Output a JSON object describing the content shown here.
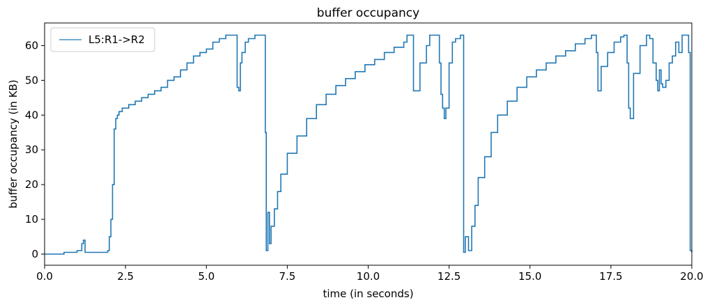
{
  "chart_data": {
    "type": "line",
    "title": "buffer occupancy",
    "xlabel": "time (in seconds)",
    "ylabel": "buffer occupancy (in KB)",
    "xlim": [
      0,
      20
    ],
    "ylim": [
      -3.2,
      66.5
    ],
    "xticks": [
      "0.0",
      "2.5",
      "5.0",
      "7.5",
      "10.0",
      "12.5",
      "15.0",
      "17.5",
      "20.0"
    ],
    "yticks": [
      "0",
      "10",
      "20",
      "30",
      "40",
      "50",
      "60"
    ],
    "grid": false,
    "legend_position": "top-left",
    "series": [
      {
        "name": "L5:R1->R2",
        "color": "#1f77b4",
        "x": [
          0,
          0.5,
          0.6,
          0.8,
          1.0,
          1.15,
          1.2,
          1.25,
          1.3,
          1.5,
          1.8,
          1.95,
          2.0,
          2.05,
          2.1,
          2.15,
          2.2,
          2.25,
          2.3,
          2.4,
          2.6,
          2.8,
          3.0,
          3.2,
          3.4,
          3.6,
          3.8,
          4.0,
          4.2,
          4.4,
          4.6,
          4.8,
          5.0,
          5.2,
          5.4,
          5.6,
          5.8,
          5.9,
          5.95,
          6.0,
          6.05,
          6.1,
          6.2,
          6.3,
          6.5,
          6.7,
          6.8,
          6.82,
          6.85,
          6.9,
          6.95,
          7.0,
          7.1,
          7.2,
          7.3,
          7.5,
          7.8,
          8.1,
          8.4,
          8.7,
          9.0,
          9.3,
          9.6,
          9.9,
          10.2,
          10.5,
          10.8,
          11.1,
          11.2,
          11.3,
          11.4,
          11.6,
          11.8,
          11.9,
          12.0,
          12.1,
          12.2,
          12.25,
          12.3,
          12.35,
          12.4,
          12.5,
          12.6,
          12.7,
          12.85,
          12.9,
          12.95,
          13.0,
          13.1,
          13.2,
          13.3,
          13.4,
          13.6,
          13.8,
          14.0,
          14.3,
          14.6,
          14.9,
          15.2,
          15.5,
          15.8,
          16.1,
          16.4,
          16.7,
          16.9,
          17.0,
          17.05,
          17.1,
          17.2,
          17.4,
          17.6,
          17.8,
          17.9,
          18.0,
          18.05,
          18.1,
          18.2,
          18.4,
          18.6,
          18.7,
          18.8,
          18.9,
          18.95,
          19.0,
          19.05,
          19.1,
          19.2,
          19.3,
          19.4,
          19.5,
          19.6,
          19.7,
          19.8,
          19.9,
          19.95,
          20.0
        ],
        "y": [
          0,
          0,
          0.5,
          0.5,
          1,
          3,
          4,
          0.5,
          0.5,
          0.5,
          0.5,
          1,
          5,
          10,
          20,
          36,
          39,
          40,
          41,
          42,
          43,
          44,
          45,
          46,
          47,
          48,
          50,
          51,
          53,
          55,
          57,
          58,
          59,
          61,
          62,
          63,
          63,
          63,
          48,
          47,
          55,
          58,
          61,
          62,
          63,
          63,
          63,
          35,
          1,
          12,
          3,
          8,
          13,
          18,
          23,
          29,
          34,
          39,
          43,
          46,
          48.5,
          50.5,
          52.5,
          54.5,
          56,
          58,
          59.5,
          61,
          63,
          63,
          47,
          55,
          60,
          63,
          63,
          63,
          55,
          46,
          42,
          39,
          42,
          55,
          61,
          62,
          63,
          63,
          0.5,
          5,
          1,
          8,
          14,
          22,
          28,
          35,
          40,
          44,
          48,
          51,
          53,
          55,
          57,
          58.5,
          60.5,
          62,
          63,
          63,
          58,
          47,
          54,
          58,
          61,
          62.5,
          63,
          55,
          42,
          39,
          52,
          60,
          63,
          62,
          55,
          50,
          47,
          53,
          49,
          48,
          50,
          55,
          57,
          61,
          58,
          63,
          63,
          58,
          1,
          0.5
        ]
      }
    ]
  }
}
